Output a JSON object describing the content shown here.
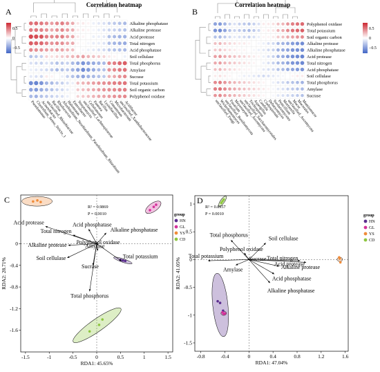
{
  "chart_data": [
    {
      "type": "heatmap",
      "panel_label": "A",
      "title": "Correlation heatmap",
      "rows": [
        "Alkaline phosphatase",
        "Alkaline protease",
        "Acid protease",
        "Total nitrogen",
        "Acid phosphatase",
        "Soil cellulase",
        "Total phosphorus",
        "Amylase",
        "Sucrase",
        "Total potassium",
        "Soil organic carbon",
        "Polyphenol oxidase"
      ],
      "columns": [
        "Pseudomonas",
        "Clostridium_Sensu_Stricto_1",
        "Acinetobacter",
        "unclassified_Rhizobiaceae",
        "Bacillus",
        "Rhodococcus",
        "Allorhizobium_Neorhizobium_Pararhizobium_Rhizobium",
        "Halomonas",
        "Enterobacter",
        "Streptomyces",
        "unclassified_Lachnospiraceae",
        "Cellulomonas",
        "Pantoea",
        "Bacillus",
        "Lysinibacillus",
        "Comamonas",
        "Microbacterium",
        "unclassified_Xanthobacteraceae",
        "Acidibacter"
      ],
      "colorbar": {
        "ticks": [
          "0.5",
          "0",
          "−0.5"
        ],
        "min": -1,
        "max": 1
      },
      "values": [
        [
          0.65,
          0.68,
          0.62,
          0.55,
          0.45,
          0.55,
          0.6,
          0.5,
          0.4,
          0.12,
          0.1,
          0.05,
          -0.1,
          -0.15,
          -0.2,
          -0.3,
          -0.35,
          -0.4,
          -0.45
        ],
        [
          0.6,
          0.62,
          0.58,
          0.5,
          0.4,
          0.5,
          0.55,
          0.45,
          0.38,
          0.1,
          0.08,
          0.05,
          -0.05,
          -0.12,
          -0.2,
          -0.28,
          -0.3,
          -0.35,
          -0.4
        ],
        [
          0.85,
          0.82,
          0.78,
          0.6,
          0.55,
          0.58,
          0.6,
          0.45,
          0.42,
          0.1,
          0.05,
          0.0,
          -0.1,
          -0.1,
          -0.15,
          -0.4,
          -0.45,
          -0.5,
          -0.5
        ],
        [
          0.75,
          0.72,
          0.7,
          0.58,
          0.5,
          0.55,
          0.52,
          0.42,
          0.4,
          0.05,
          0.02,
          -0.05,
          -0.12,
          -0.12,
          -0.18,
          -0.42,
          -0.48,
          -0.52,
          -0.55
        ],
        [
          0.55,
          0.52,
          0.5,
          0.45,
          0.4,
          0.45,
          0.42,
          0.35,
          0.3,
          0.0,
          -0.05,
          -0.1,
          -0.15,
          -0.2,
          -0.25,
          -0.35,
          -0.4,
          -0.42,
          -0.45
        ],
        [
          -0.4,
          -0.35,
          -0.3,
          0.2,
          0.15,
          0.2,
          0.25,
          0.3,
          0.35,
          0.4,
          0.45,
          0.35,
          0.3,
          0.25,
          0.2,
          0.1,
          0.05,
          0.0,
          -0.1
        ],
        [
          -0.2,
          -0.25,
          -0.3,
          -0.2,
          -0.3,
          -0.4,
          -0.35,
          -0.3,
          -0.45,
          -0.55,
          -0.7,
          -0.6,
          -0.55,
          -0.5,
          -0.45,
          0.55,
          0.6,
          0.7,
          0.75
        ],
        [
          -0.1,
          -0.15,
          -0.2,
          -0.25,
          -0.35,
          -0.45,
          -0.4,
          -0.35,
          -0.5,
          -0.6,
          -0.75,
          -0.65,
          -0.55,
          -0.45,
          -0.4,
          0.5,
          0.55,
          0.62,
          0.65
        ],
        [
          -0.15,
          -0.2,
          -0.25,
          0.1,
          0.05,
          0.0,
          -0.1,
          -0.3,
          -0.4,
          -0.5,
          -0.6,
          -0.5,
          -0.45,
          -0.4,
          -0.35,
          0.35,
          0.4,
          0.5,
          0.55
        ],
        [
          -0.75,
          -0.8,
          -0.7,
          -0.5,
          -0.45,
          -0.35,
          -0.3,
          -0.2,
          -0.1,
          0.3,
          0.35,
          0.4,
          0.45,
          0.5,
          0.52,
          0.55,
          0.6,
          0.62,
          0.65
        ],
        [
          -0.6,
          -0.65,
          -0.55,
          -0.45,
          -0.4,
          -0.3,
          -0.25,
          -0.15,
          -0.05,
          0.25,
          0.3,
          0.35,
          0.4,
          0.45,
          0.5,
          0.52,
          0.55,
          0.58,
          0.6
        ],
        [
          -0.45,
          -0.5,
          -0.4,
          -0.35,
          -0.3,
          -0.25,
          -0.2,
          -0.1,
          0.0,
          0.2,
          0.25,
          0.3,
          0.35,
          0.4,
          0.42,
          0.45,
          0.5,
          0.52,
          0.55
        ]
      ]
    },
    {
      "type": "heatmap",
      "panel_label": "B",
      "title": "Correlation heatmap",
      "rows": [
        "Polyphenol oxidase",
        "Total potassium",
        "Soil organic carbon",
        "Alkaline protease",
        "Alkaline phosphatase",
        "Acid protease",
        "Total nitrogen",
        "Acid phosphatase",
        "Soil cellulase",
        "Total phosphorus",
        "Amylase",
        "Sucrase"
      ],
      "columns": [
        "unclassified_Fungi",
        "Wickerhamomyces",
        "unclassified_Basidiomycota",
        "Fusarium",
        "Meyerozyma",
        "unclassified_Ascomycota",
        "unclassified_Saccharomycetales",
        "Trichosporon",
        "Aspergillus",
        "Candida",
        "Cladosporium",
        "Debaryomyces",
        "Sordariomycetes",
        "Penicillium",
        "Mortierella",
        "unclassified_Ascomycota",
        "Mucor",
        "Mucorales",
        "Mumiomucor"
      ],
      "colorbar": {
        "ticks": [
          "0.5",
          "0",
          "−0.5"
        ],
        "min": -1,
        "max": 1
      },
      "values": [
        [
          -0.6,
          -0.65,
          -0.5,
          -0.3,
          -0.2,
          -0.3,
          -0.35,
          -0.4,
          -0.3,
          -0.2,
          0.1,
          0.1,
          0.15,
          0.3,
          0.35,
          0.5,
          0.6,
          0.65,
          0.7
        ],
        [
          -0.7,
          -0.75,
          -0.6,
          -0.4,
          -0.3,
          -0.35,
          -0.4,
          -0.45,
          -0.35,
          -0.25,
          0.05,
          0.1,
          0.12,
          0.35,
          0.4,
          0.55,
          0.65,
          0.7,
          0.75
        ],
        [
          -0.4,
          -0.45,
          -0.35,
          -0.25,
          -0.15,
          -0.2,
          -0.25,
          -0.3,
          -0.2,
          -0.1,
          0.05,
          0.05,
          0.1,
          0.25,
          0.3,
          0.4,
          0.45,
          0.5,
          0.55
        ],
        [
          0.3,
          0.35,
          0.25,
          0.2,
          0.15,
          0.1,
          0.1,
          0.05,
          0.0,
          -0.05,
          -0.1,
          -0.2,
          -0.25,
          -0.45,
          -0.5,
          -0.55,
          -0.65,
          -0.7,
          -0.75
        ],
        [
          0.25,
          0.3,
          0.2,
          0.15,
          0.1,
          0.05,
          0.05,
          0.0,
          -0.05,
          -0.1,
          -0.15,
          -0.25,
          -0.3,
          -0.5,
          -0.55,
          -0.6,
          -0.7,
          -0.72,
          -0.75
        ],
        [
          0.45,
          0.5,
          0.4,
          0.35,
          0.3,
          0.25,
          0.2,
          0.15,
          0.1,
          0.05,
          -0.1,
          -0.2,
          -0.3,
          -0.5,
          -0.55,
          -0.65,
          -0.72,
          -0.75,
          -0.8
        ],
        [
          0.4,
          0.45,
          0.35,
          0.3,
          0.25,
          0.2,
          0.15,
          0.1,
          0.05,
          0.0,
          -0.1,
          -0.2,
          -0.3,
          -0.45,
          -0.5,
          -0.6,
          -0.7,
          -0.72,
          -0.78
        ],
        [
          0.3,
          0.35,
          0.25,
          0.2,
          0.15,
          0.1,
          0.05,
          0.05,
          0.0,
          -0.05,
          -0.15,
          -0.2,
          -0.25,
          -0.4,
          -0.45,
          -0.55,
          -0.6,
          -0.65,
          -0.7
        ],
        [
          0.1,
          0.15,
          0.1,
          0.05,
          0.0,
          -0.05,
          -0.1,
          -0.1,
          -0.15,
          -0.2,
          -0.25,
          -0.2,
          -0.15,
          -0.1,
          -0.05,
          0.0,
          0.05,
          0.1,
          0.1
        ],
        [
          0.55,
          0.6,
          0.5,
          0.4,
          0.35,
          0.3,
          0.25,
          0.2,
          0.15,
          0.1,
          0.05,
          0.0,
          -0.1,
          -0.2,
          -0.25,
          -0.35,
          -0.4,
          -0.45,
          -0.5
        ],
        [
          0.6,
          0.65,
          0.55,
          0.45,
          0.4,
          0.35,
          0.3,
          0.25,
          0.2,
          0.15,
          0.1,
          0.05,
          -0.05,
          -0.15,
          -0.2,
          -0.3,
          -0.35,
          -0.4,
          -0.45
        ],
        [
          0.5,
          0.55,
          0.45,
          0.4,
          0.35,
          0.3,
          0.25,
          0.2,
          0.15,
          0.1,
          0.05,
          0.0,
          -0.05,
          -0.15,
          -0.2,
          -0.25,
          -0.3,
          -0.35,
          -0.4
        ]
      ]
    },
    {
      "type": "scatter",
      "panel_label": "C",
      "xlabel": "RDA1: 45.65%",
      "ylabel": "RDA2: 28.71%",
      "xlim": [
        -1.6,
        1.6
      ],
      "ylim": [
        -2.0,
        0.9
      ],
      "xticks": [
        "-1.5",
        "-1",
        "-0.5",
        "0",
        "0.5",
        "1",
        "1.5"
      ],
      "yticks": [
        "0",
        "-0.4",
        "-0.8",
        "-1.2",
        "-1.6"
      ],
      "stats": {
        "r2": "R² = 0.9869",
        "p": "P = 0.0010"
      },
      "legend": {
        "title": "group",
        "items": [
          "HN",
          "GL",
          "YS",
          "CD"
        ]
      },
      "vectors": [
        {
          "label": "Acid protease",
          "x": -1.08,
          "y": 0.32
        },
        {
          "label": "Acid phosphatase",
          "x": -0.17,
          "y": 0.27
        },
        {
          "label": "Total nitrogen",
          "x": -0.5,
          "y": 0.16
        },
        {
          "label": "Alkaline phosphatase",
          "x": 0.2,
          "y": 0.2
        },
        {
          "label": "Alkaline protease",
          "x": -0.6,
          "y": -0.03
        },
        {
          "label": "Polyphenol oxidase",
          "x": 0.03,
          "y": -0.03
        },
        {
          "label": "Soil cellulase",
          "x": -0.62,
          "y": -0.26
        },
        {
          "label": "Amylase",
          "x": 0.02,
          "y": -0.13
        },
        {
          "label": "Total potassium",
          "x": 0.52,
          "y": -0.32
        },
        {
          "label": "Sucrase",
          "x": -0.08,
          "y": -0.4
        },
        {
          "label": "Total phosphorus",
          "x": -0.15,
          "y": -0.88
        }
      ],
      "series": [
        {
          "name": "HN",
          "color": "#5b2d8e",
          "points": [
            [
              0.5,
              -0.3
            ],
            [
              0.55,
              -0.31
            ],
            [
              0.6,
              -0.32
            ]
          ]
        },
        {
          "name": "GL",
          "color": "#d4329b",
          "points": [
            [
              1.12,
              0.62
            ],
            [
              1.2,
              0.68
            ],
            [
              1.25,
              0.72
            ]
          ]
        },
        {
          "name": "YS",
          "color": "#f08c3a",
          "points": [
            [
              -1.34,
              0.78
            ],
            [
              -1.25,
              0.8
            ],
            [
              -1.18,
              0.77
            ]
          ]
        },
        {
          "name": "CD",
          "color": "#8ec63f",
          "points": [
            [
              -0.15,
              -1.62
            ],
            [
              0.05,
              -1.5
            ],
            [
              0.12,
              -1.4
            ]
          ]
        }
      ]
    },
    {
      "type": "scatter",
      "panel_label": "D",
      "xlabel": "RDA1: 47.04%",
      "ylabel": "RDA2: 41.05%",
      "xlim": [
        -0.9,
        1.65
      ],
      "ylim": [
        -1.65,
        1.15
      ],
      "xticks": [
        "-0.8",
        "-0.4",
        "0",
        "0.4",
        "0.8",
        "1.2",
        "1.6"
      ],
      "yticks": [
        "1",
        "0.5",
        "0",
        "-0.5",
        "-1",
        "-1.5"
      ],
      "stats": {
        "r2": "R² = 0.8957",
        "p": "P = 0.0010"
      },
      "legend": {
        "title": "group",
        "items": [
          "HN",
          "GL",
          "YS",
          "CD"
        ]
      },
      "vectors": [
        {
          "label": "Soil cellulase",
          "x": 0.28,
          "y": 0.3
        },
        {
          "label": "Total phosphorus",
          "x": -0.3,
          "y": 0.35
        },
        {
          "label": "Polyphenol oxidase",
          "x": -0.08,
          "y": 0.12
        },
        {
          "label": "Sucrase",
          "x": -0.02,
          "y": 0.03
        },
        {
          "label": "Total potassium",
          "x": -0.68,
          "y": -0.02
        },
        {
          "label": "Amylase",
          "x": -0.22,
          "y": -0.1
        },
        {
          "label": "Total nitrogen",
          "x": 0.85,
          "y": -0.02
        },
        {
          "label": "Acid protease",
          "x": 0.95,
          "y": -0.05
        },
        {
          "label": "Alkaline protease",
          "x": 0.5,
          "y": -0.12
        },
        {
          "label": "Acid phosphatase",
          "x": 0.42,
          "y": -0.26
        },
        {
          "label": "Alkaline phosphatase",
          "x": 0.35,
          "y": -0.42
        }
      ],
      "series": [
        {
          "name": "HN",
          "color": "#5b2d8e",
          "points": [
            [
              -0.52,
              -0.75
            ],
            [
              -0.48,
              -0.78
            ],
            [
              -0.43,
              -0.92
            ]
          ]
        },
        {
          "name": "GL",
          "color": "#d4329b",
          "points": [
            [
              -0.44,
              -0.95
            ],
            [
              -0.42,
              -0.98
            ],
            [
              -0.4,
              -0.97
            ]
          ]
        },
        {
          "name": "YS",
          "color": "#f08c3a",
          "points": [
            [
              1.5,
              0.04
            ],
            [
              1.51,
              0.02
            ],
            [
              1.52,
              -0.05
            ]
          ]
        },
        {
          "name": "CD",
          "color": "#8ec63f",
          "points": [
            [
              -0.46,
              1.02
            ],
            [
              -0.44,
              1.05
            ],
            [
              -0.42,
              1.08
            ]
          ]
        }
      ]
    }
  ]
}
